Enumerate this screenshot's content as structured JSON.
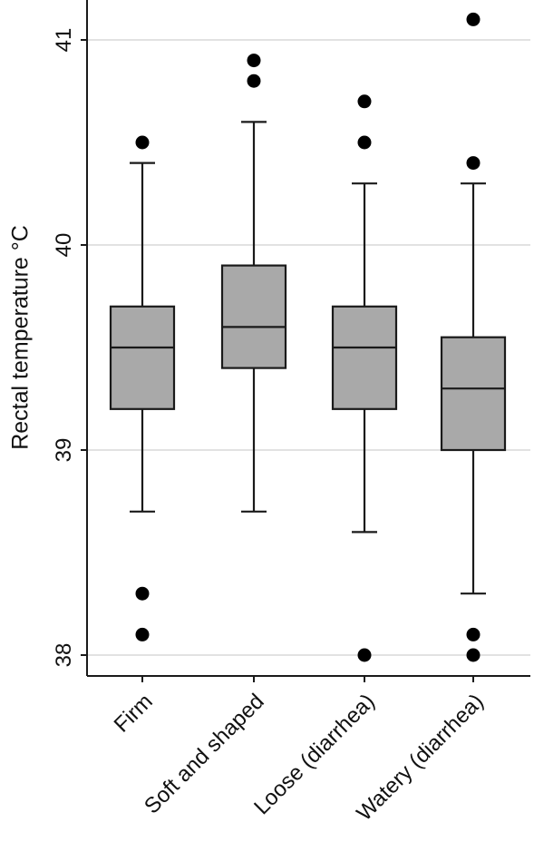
{
  "chart_data": {
    "type": "box",
    "ylabel": "Rectal temperature °C",
    "xlabel": "",
    "ylim": [
      37.9,
      41.2
    ],
    "yticks": [
      38,
      39,
      40,
      41
    ],
    "grid": true,
    "box_fill": "#a9a9a9",
    "line_color": "#1a1a1a",
    "grid_color": "#d9d9d9",
    "categories": [
      "Firm",
      "Soft and shaped",
      "Loose (diarrhea)",
      "Watery (diarrhea)"
    ],
    "boxes": [
      {
        "category": "Firm",
        "whisker_low": 38.7,
        "q1": 39.2,
        "median": 39.5,
        "q3": 39.7,
        "whisker_high": 40.4,
        "outliers": [
          38.1,
          38.3,
          40.5
        ]
      },
      {
        "category": "Soft and shaped",
        "whisker_low": 38.7,
        "q1": 39.4,
        "median": 39.6,
        "q3": 39.9,
        "whisker_high": 40.6,
        "outliers": [
          40.8,
          40.9
        ]
      },
      {
        "category": "Loose (diarrhea)",
        "whisker_low": 38.6,
        "q1": 39.2,
        "median": 39.5,
        "q3": 39.7,
        "whisker_high": 40.3,
        "outliers": [
          38.0,
          40.5,
          40.7
        ]
      },
      {
        "category": "Watery (diarrhea)",
        "whisker_low": 38.3,
        "q1": 39.0,
        "median": 39.3,
        "q3": 39.55,
        "whisker_high": 40.3,
        "outliers": [
          38.0,
          38.1,
          40.4,
          41.1
        ]
      }
    ]
  }
}
